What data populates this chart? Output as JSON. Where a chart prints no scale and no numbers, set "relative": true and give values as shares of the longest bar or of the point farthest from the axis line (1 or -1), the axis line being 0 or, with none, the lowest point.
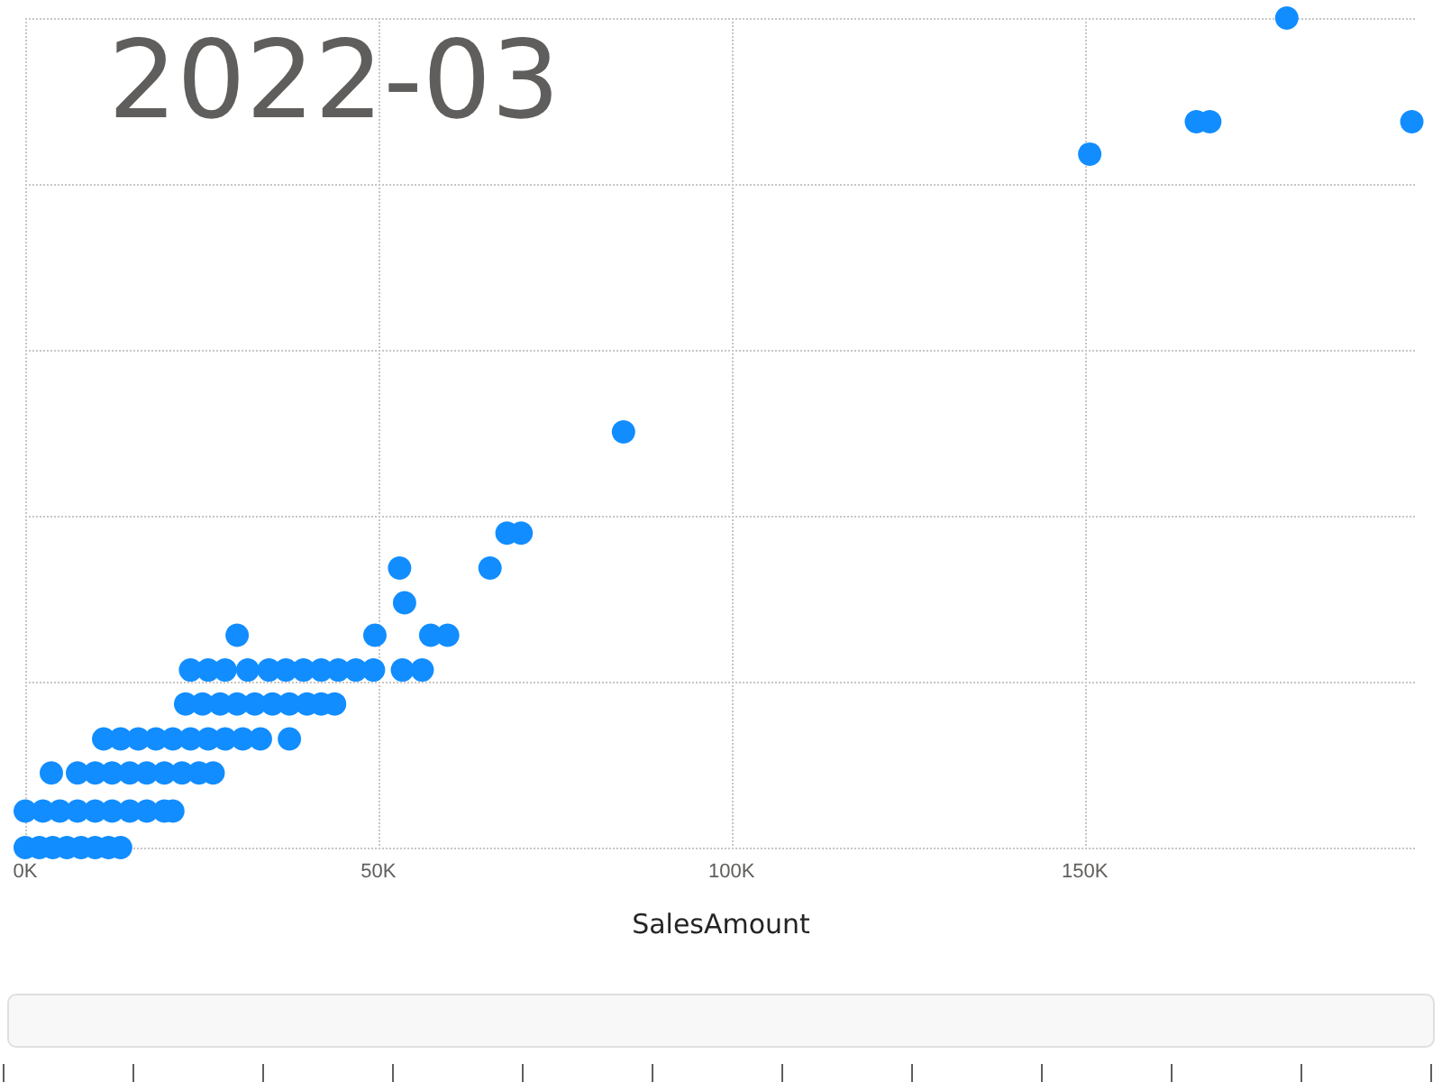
{
  "chart_data": {
    "type": "scatter",
    "relative": true,
    "xlabel": "SalesAmount",
    "annotations": [
      "2022-03"
    ],
    "color": "#118dff",
    "marker": "circle",
    "grid": true,
    "xlim": [
      0,
      197000
    ],
    "xticks": [
      {
        "value": 0,
        "label": "0K"
      },
      {
        "value": 50000,
        "label": "50K"
      },
      {
        "value": 100000,
        "label": "100K"
      },
      {
        "value": 150000,
        "label": "150K"
      }
    ],
    "x": [
      0,
      2000,
      3900,
      5900,
      7900,
      9900,
      11800,
      13500,
      0,
      2500,
      4900,
      7400,
      9900,
      12300,
      14800,
      17200,
      19700,
      20900,
      3700,
      7400,
      9900,
      12300,
      14800,
      17200,
      19700,
      22200,
      24600,
      26600,
      11100,
      13500,
      16000,
      18500,
      20900,
      23400,
      25900,
      28300,
      30800,
      33300,
      37400,
      22700,
      25100,
      27600,
      30000,
      32500,
      35000,
      37400,
      39900,
      41900,
      43800,
      23400,
      25900,
      28300,
      31500,
      34500,
      36900,
      39400,
      41900,
      44300,
      46800,
      49300,
      53400,
      56200,
      30000,
      49500,
      57400,
      59800,
      53700,
      53000,
      65800,
      68200,
      70200,
      84700,
      150700,
      165800,
      167700,
      196300,
      178600
    ],
    "values": [
      0,
      0,
      0,
      0,
      0,
      0,
      0,
      0,
      0.044,
      0.044,
      0.044,
      0.044,
      0.044,
      0.044,
      0.044,
      0.044,
      0.044,
      0.044,
      0.09,
      0.09,
      0.09,
      0.09,
      0.09,
      0.09,
      0.09,
      0.09,
      0.09,
      0.09,
      0.131,
      0.131,
      0.131,
      0.131,
      0.131,
      0.131,
      0.131,
      0.131,
      0.131,
      0.131,
      0.131,
      0.173,
      0.173,
      0.173,
      0.173,
      0.173,
      0.173,
      0.173,
      0.173,
      0.173,
      0.173,
      0.214,
      0.214,
      0.214,
      0.214,
      0.214,
      0.214,
      0.214,
      0.214,
      0.214,
      0.214,
      0.214,
      0.214,
      0.214,
      0.256,
      0.256,
      0.256,
      0.256,
      0.295,
      0.337,
      0.337,
      0.379,
      0.379,
      0.501,
      0.836,
      0.875,
      0.875,
      0.875,
      1
    ]
  }
}
